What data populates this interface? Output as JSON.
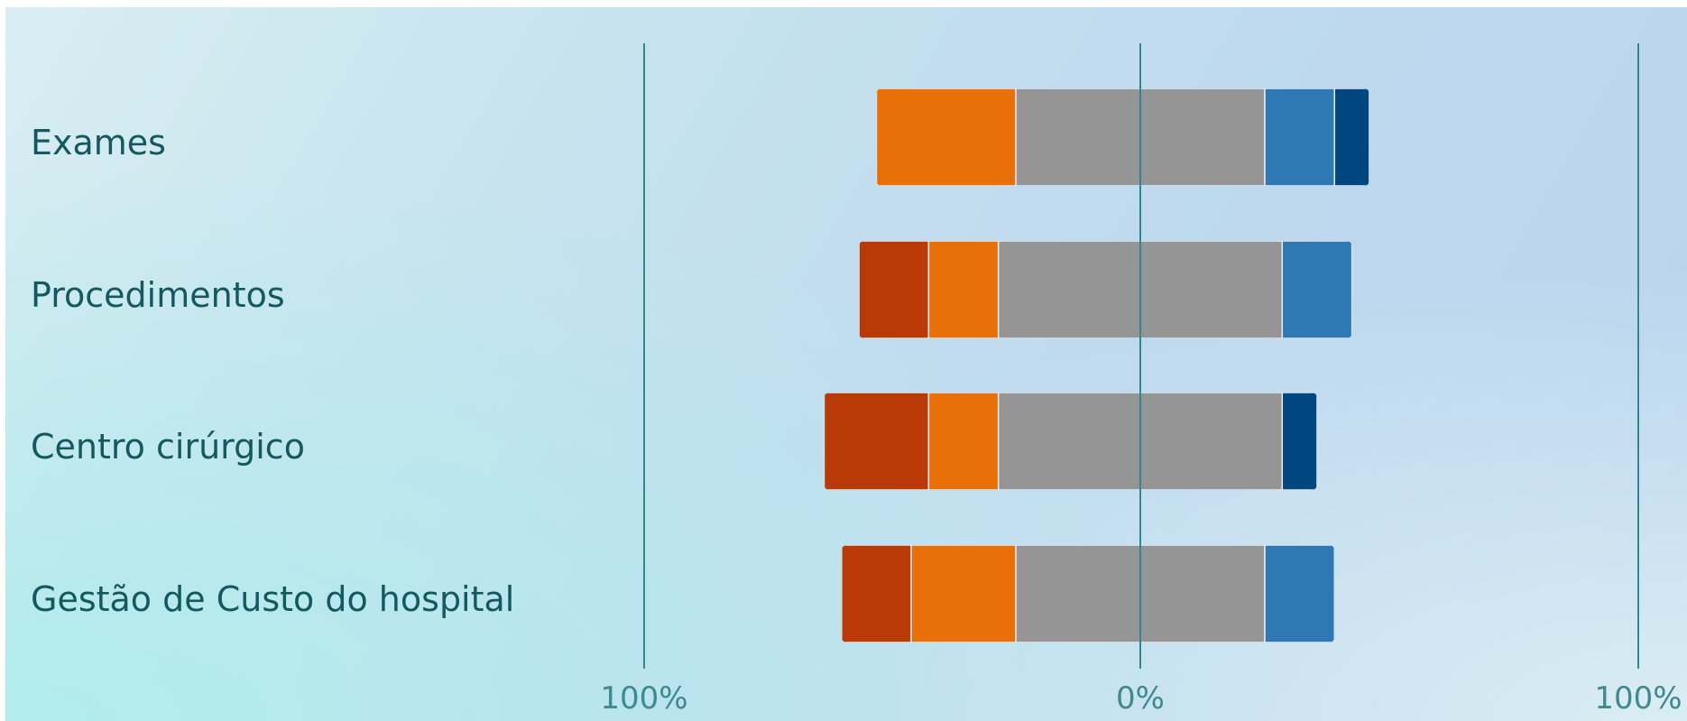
{
  "chart_data": {
    "type": "bar",
    "orientation": "horizontal",
    "stacking": "diverging",
    "title": "",
    "xlabel": "",
    "ylabel": "",
    "categories": [
      "Exames",
      "Procedimentos",
      "Centro cirúrgico",
      "Gestão de Custo do hospital"
    ],
    "xlim": [
      -100,
      100
    ],
    "x_tick_labels": [
      "100%",
      "0%",
      "100%"
    ],
    "grid": false,
    "legend": "none",
    "series": [
      {
        "side": "negative",
        "color": "#b93a06",
        "values": [
          0,
          14,
          21,
          14
        ]
      },
      {
        "side": "negative",
        "color": "#e97009",
        "values": [
          28,
          14,
          14,
          21
        ]
      },
      {
        "side": "neutral",
        "color": "#959595",
        "values": [
          50,
          57,
          57,
          50
        ]
      },
      {
        "side": "positive",
        "color": "#2e79b3",
        "values": [
          14,
          14,
          0,
          14
        ]
      },
      {
        "side": "positive",
        "color": "#00467f",
        "values": [
          7,
          0,
          7,
          0
        ]
      }
    ]
  }
}
